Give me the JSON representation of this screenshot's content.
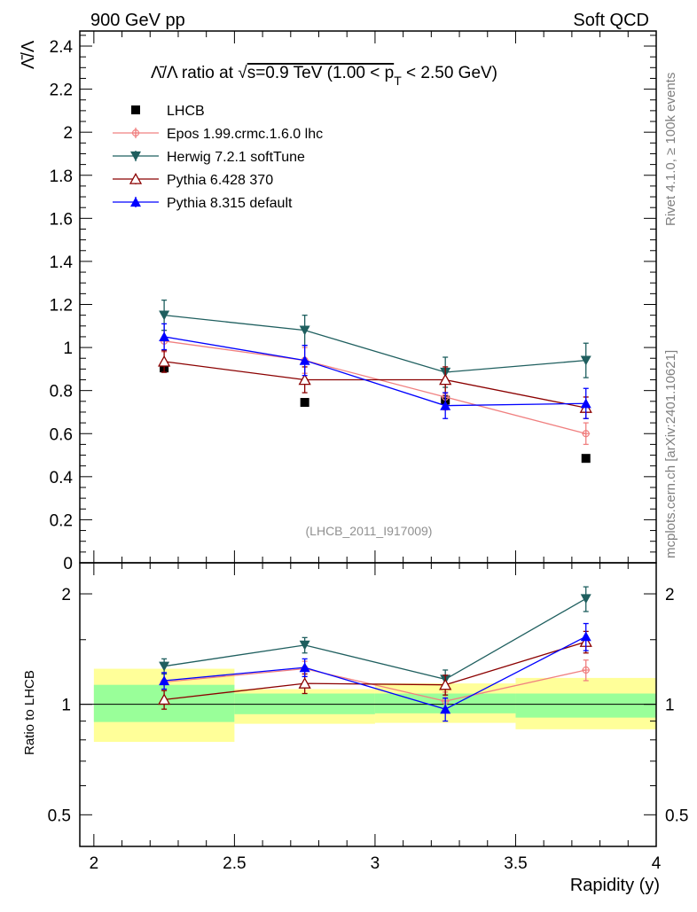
{
  "header": {
    "left": "900 GeV pp",
    "right": "Soft QCD"
  },
  "side_text": {
    "rivet": "Rivet 4.1.0, ≥ 100k events",
    "mcplots": "mcplots.cern.ch [arXiv:2401.10621]"
  },
  "colors": {
    "data": "#000000",
    "epos": "#f08080",
    "herwig": "#1f5f5f",
    "pythia6": "#8b0000",
    "pythia8": "#0000ff",
    "band_inner": "#99ff99",
    "band_outer": "#ffff99"
  },
  "chart_data": [
    {
      "type": "scatter",
      "title_parts": [
        "Λ̄/Λ ratio at √",
        "s=0.9 TeV (1.00 < p",
        "T",
        " < 2.50 GeV)"
      ],
      "watermark": "(LHCB_2011_I917009)",
      "ylabel": "Λ̄/Λ",
      "xlim": [
        1.95,
        4.0
      ],
      "ylim": [
        0,
        2.47
      ],
      "yticks": [
        0,
        0.2,
        0.4,
        0.6,
        0.8,
        1,
        1.2,
        1.4,
        1.6,
        1.8,
        2,
        2.2,
        2.4
      ],
      "ytick_labels": [
        "0",
        "0.2",
        "0.4",
        "0.6",
        "0.8",
        "1",
        "1.2",
        "1.4",
        "1.6",
        "1.8",
        "2",
        "2.2",
        "2.4"
      ],
      "x": [
        2.25,
        2.75,
        3.25,
        3.75
      ],
      "series": [
        {
          "key": "data",
          "name": "LHCB",
          "marker": "square",
          "values": [
            0.905,
            0.745,
            0.755,
            0.485
          ],
          "err": [
            0.02,
            0.01,
            0.02,
            0.01
          ],
          "line": false
        },
        {
          "key": "epos",
          "name": "Epos 1.99.crmc.1.6.0 lhc",
          "marker": "cross",
          "values": [
            1.03,
            0.94,
            0.77,
            0.6
          ],
          "err": [
            0.05,
            0.06,
            0.06,
            0.05
          ],
          "line": true
        },
        {
          "key": "herwig",
          "name": "Herwig 7.2.1 softTune",
          "marker": "tri-down",
          "values": [
            1.15,
            1.08,
            0.885,
            0.94
          ],
          "err": [
            0.07,
            0.07,
            0.07,
            0.08
          ],
          "line": true
        },
        {
          "key": "pythia6",
          "name": "Pythia 6.428 370",
          "marker": "tri-up-open",
          "values": [
            0.935,
            0.85,
            0.85,
            0.72
          ],
          "err": [
            0.05,
            0.06,
            0.06,
            0.05
          ],
          "line": true
        },
        {
          "key": "pythia8",
          "name": "Pythia 8.315 default",
          "marker": "tri-up",
          "values": [
            1.05,
            0.94,
            0.73,
            0.74
          ],
          "err": [
            0.06,
            0.07,
            0.06,
            0.07
          ],
          "line": true
        }
      ]
    },
    {
      "type": "scatter",
      "ylabel": "Ratio to LHCB",
      "xlabel": "Rapidity (y)",
      "xlim": [
        1.95,
        4.0
      ],
      "ylim": [
        0.41,
        2.43
      ],
      "ylog": true,
      "yticks": [
        0.5,
        1,
        2
      ],
      "ytick_labels": [
        "0.5",
        "1",
        "2"
      ],
      "xticks": [
        2,
        2.5,
        3,
        3.5,
        4
      ],
      "xtick_labels": [
        "2",
        "2.5",
        "3",
        "3.5",
        "4"
      ],
      "x": [
        2.25,
        2.75,
        3.25,
        3.75
      ],
      "bands": [
        {
          "x0": 2.0,
          "x1": 2.5,
          "inner": [
            0.895,
            1.13
          ],
          "outer": [
            0.79,
            1.25
          ]
        },
        {
          "x0": 2.5,
          "x1": 3.0,
          "inner": [
            0.94,
            1.07
          ],
          "outer": [
            0.885,
            1.1
          ]
        },
        {
          "x0": 3.0,
          "x1": 3.5,
          "inner": [
            0.945,
            1.07
          ],
          "outer": [
            0.89,
            1.14
          ]
        },
        {
          "x0": 3.5,
          "x1": 4.0,
          "inner": [
            0.92,
            1.07
          ],
          "outer": [
            0.855,
            1.18
          ]
        }
      ],
      "series": [
        {
          "key": "epos",
          "marker": "cross",
          "values": [
            1.15,
            1.25,
            1.02,
            1.24
          ],
          "err": [
            0.06,
            0.06,
            0.06,
            0.08
          ]
        },
        {
          "key": "herwig",
          "marker": "tri-down",
          "values": [
            1.27,
            1.45,
            1.17,
            1.94
          ],
          "err": [
            0.06,
            0.07,
            0.07,
            0.15
          ]
        },
        {
          "key": "pythia6",
          "marker": "tri-up-open",
          "values": [
            1.03,
            1.14,
            1.13,
            1.48
          ],
          "err": [
            0.06,
            0.07,
            0.07,
            0.1
          ]
        },
        {
          "key": "pythia8",
          "marker": "tri-up",
          "values": [
            1.16,
            1.26,
            0.97,
            1.53
          ],
          "err": [
            0.06,
            0.07,
            0.07,
            0.13
          ]
        }
      ]
    }
  ]
}
